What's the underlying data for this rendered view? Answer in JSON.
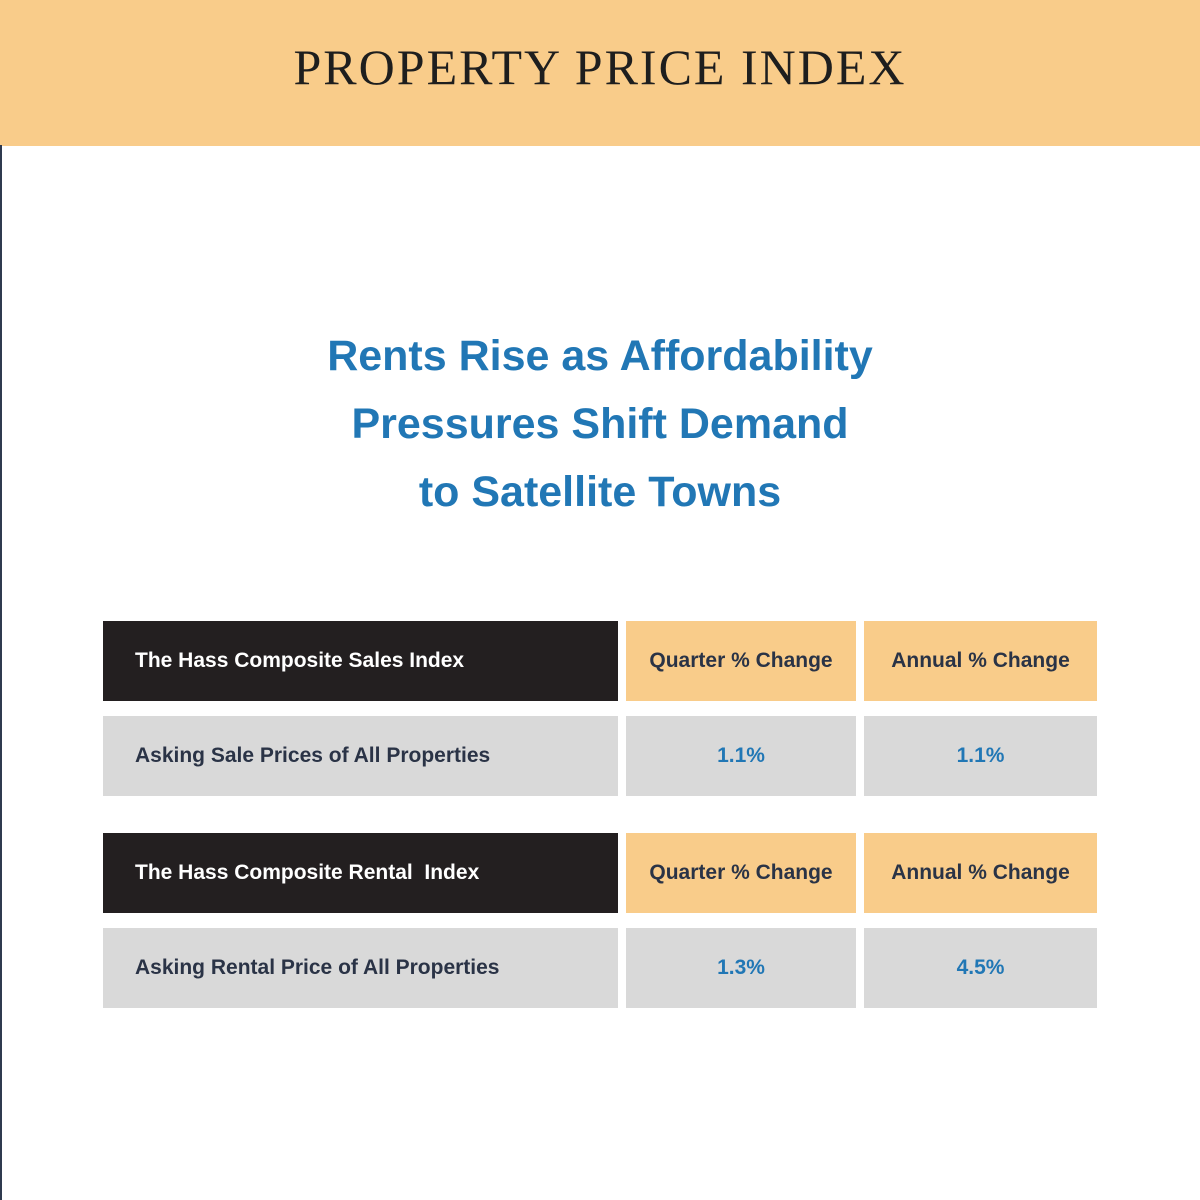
{
  "header": {
    "title": "PROPERTY PRICE INDEX"
  },
  "headline": {
    "line1": "Rents Rise as Affordability",
    "line2": "Pressures Shift Demand",
    "line3": "to Satellite Towns"
  },
  "sales_table": {
    "index_name": "The Hass Composite Sales Index",
    "quarter_header": "Quarter % Change",
    "annual_header": "Annual % Change",
    "row_label": "Asking Sale Prices of All Properties",
    "quarter_value": "1.1%",
    "annual_value": "1.1%"
  },
  "rental_table": {
    "index_name": "The Hass Composite Rental  Index",
    "quarter_header": "Quarter % Change",
    "annual_header": "Annual % Change",
    "row_label": "Asking Rental Price of All Properties",
    "quarter_value": "1.3%",
    "annual_value": "4.5%"
  },
  "colors": {
    "accent_peach": "#f9cc8a",
    "headline_blue": "#2177b5",
    "dark_header": "#231f20",
    "row_grey": "#d9d9d9",
    "text_navy": "#2a3346"
  }
}
